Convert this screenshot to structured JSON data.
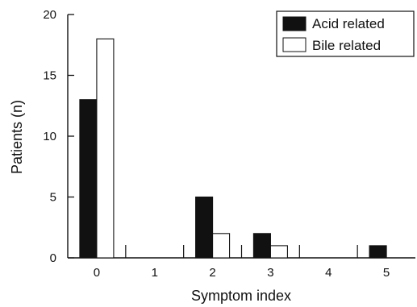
{
  "chart_data": {
    "type": "bar",
    "title": "",
    "xlabel": "Symptom index",
    "ylabel": "Patients (n)",
    "categories": [
      "0",
      "1",
      "2",
      "3",
      "4",
      "5"
    ],
    "series": [
      {
        "name": "Acid related",
        "values": [
          13,
          0,
          5,
          2,
          0,
          1
        ],
        "color": "#111111"
      },
      {
        "name": "Bile related",
        "values": [
          18,
          0,
          2,
          1,
          0,
          0
        ],
        "color": "#ffffff"
      }
    ],
    "ylim": [
      0,
      20
    ],
    "yticks": [
      "0",
      "5",
      "10",
      "15",
      "20"
    ],
    "grid": false,
    "legend_position": "top-right"
  }
}
